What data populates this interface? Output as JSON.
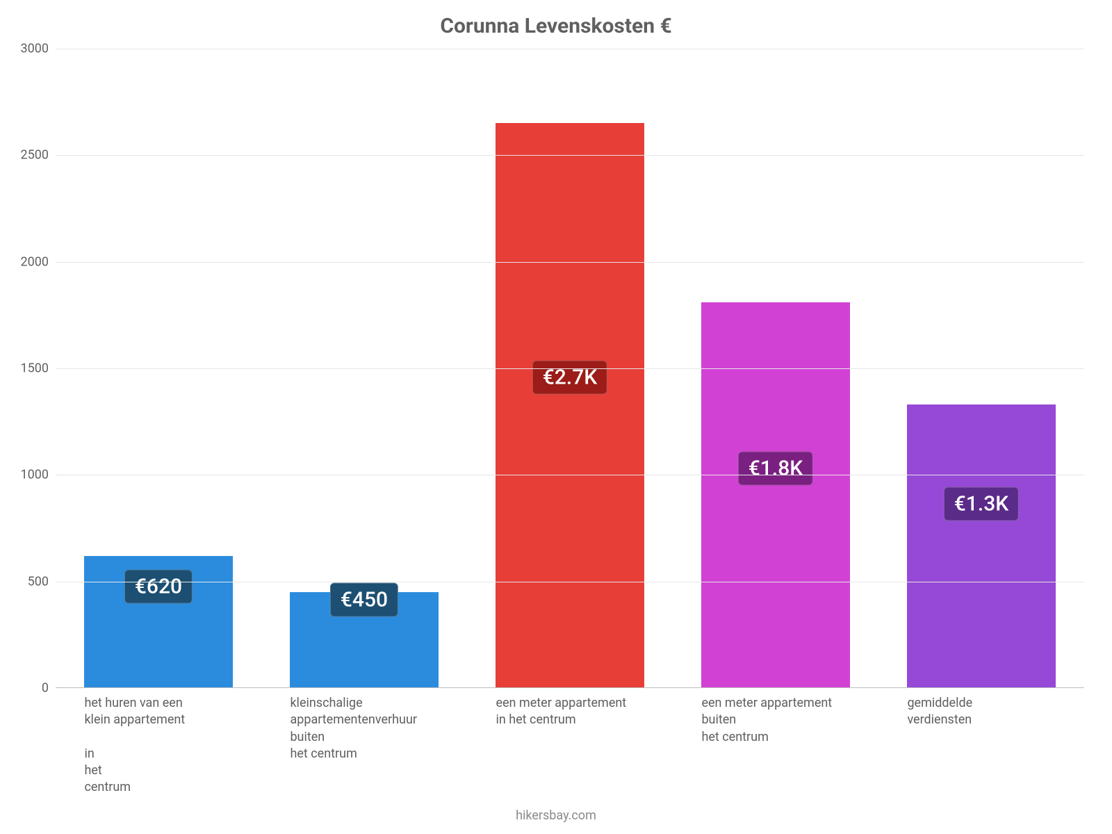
{
  "chart": {
    "type": "bar",
    "title": "Corunna Levenskosten €",
    "title_fontsize": 30,
    "title_color": "#5f5f5f",
    "background_color": "#ffffff",
    "grid_color": "#e6e6e6",
    "baseline_color": "#bfbfbf",
    "axis_text_color": "#5f5f5f",
    "axis_fontsize": 18,
    "ylim": [
      0,
      3000
    ],
    "yticks": [
      0,
      500,
      1000,
      1500,
      2000,
      2500,
      3000
    ],
    "bar_width_ratio": 0.72,
    "badge_fontsize": 30,
    "xlabel_fontsize": 18,
    "source_fontsize": 18,
    "source_color": "#8a8a8a",
    "source_text": "hikersbay.com",
    "categories": [
      "het huren van een\nklein appartement\n\nin\nhet\ncentrum",
      "kleinschalige\nappartementenverhuur\nbuiten\nhet centrum",
      "een meter appartement\nin het centrum",
      "een meter appartement\nbuiten\nhet centrum",
      "gemiddelde\nverdiensten"
    ],
    "values": [
      620,
      450,
      2650,
      1810,
      1330
    ],
    "value_labels": [
      "€620",
      "€450",
      "€2.7K",
      "€1.8K",
      "€1.3K"
    ],
    "bar_colors": [
      "#2b8cde",
      "#2b8cde",
      "#e73e38",
      "#d141d4",
      "#9549d6"
    ],
    "badge_colors": [
      "#1c4f72",
      "#1c4f72",
      "#9b1c18",
      "#7a2081",
      "#5a2b88"
    ],
    "badge_y_ratio": [
      0.77,
      0.92,
      0.55,
      0.57,
      0.65
    ]
  }
}
